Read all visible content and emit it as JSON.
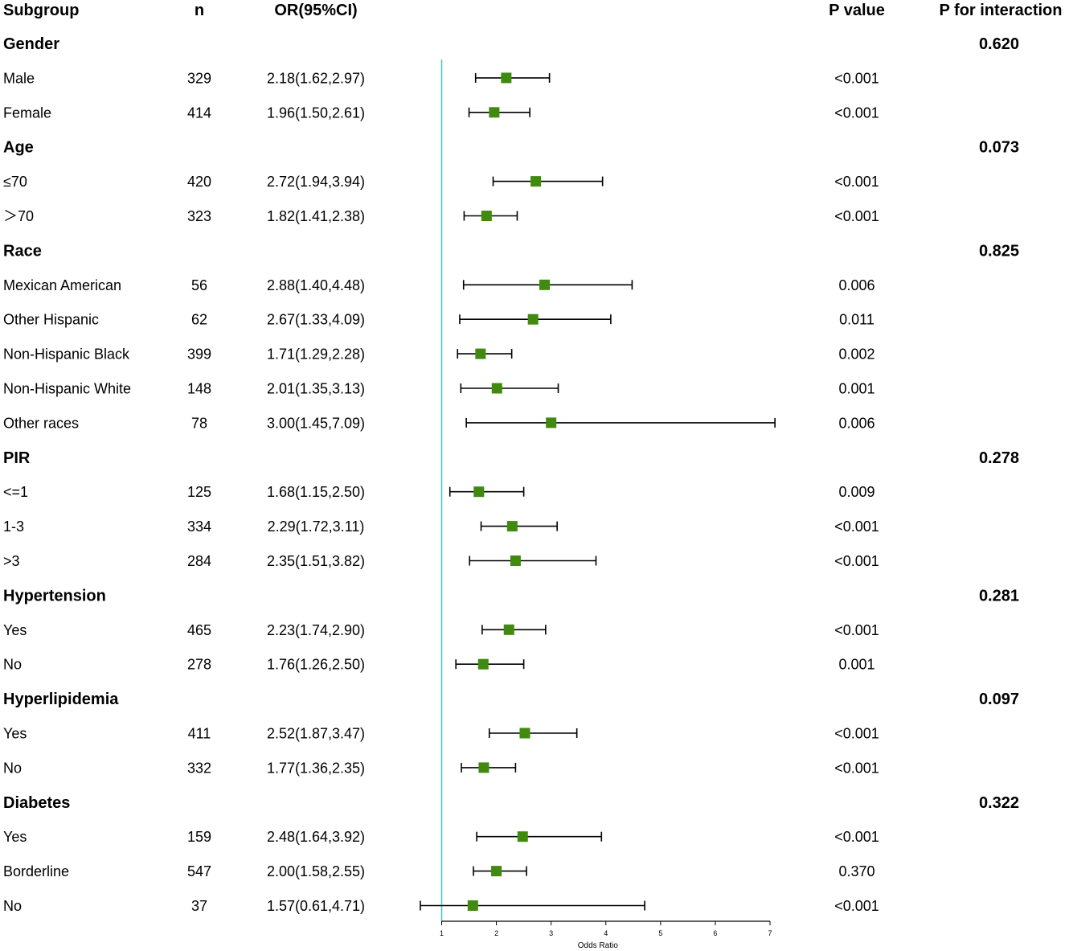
{
  "chart_data": {
    "type": "forest",
    "headers": {
      "subgroup": "Subgroup",
      "n": "n",
      "or_ci": "OR(95%CI)",
      "p_value": "P value",
      "p_interaction": "P for interaction"
    },
    "xlabel": "Odds Ratio",
    "xlim": [
      1,
      7
    ],
    "xticks": [
      1,
      2,
      3,
      4,
      5,
      6,
      7
    ],
    "reference_line": 1,
    "colors": {
      "marker": "#3f8a0f",
      "reference_line": "#4fc3c8",
      "ci": "#000000"
    },
    "rows": [
      {
        "kind": "group",
        "label": "Gender",
        "p_interaction": "0.620"
      },
      {
        "kind": "item",
        "label": "Male",
        "n": "329",
        "or_text": "2.18(1.62,2.97)",
        "or": 2.18,
        "lo": 1.62,
        "hi": 2.97,
        "p": "<0.001"
      },
      {
        "kind": "item",
        "label": "Female",
        "n": "414",
        "or_text": "1.96(1.50,2.61)",
        "or": 1.96,
        "lo": 1.5,
        "hi": 2.61,
        "p": "<0.001"
      },
      {
        "kind": "group",
        "label": "Age",
        "p_interaction": "0.073"
      },
      {
        "kind": "item",
        "label": "≤70",
        "n": "420",
        "or_text": "2.72(1.94,3.94)",
        "or": 2.72,
        "lo": 1.94,
        "hi": 3.94,
        "p": "<0.001"
      },
      {
        "kind": "item",
        "label": "＞70",
        "n": "323",
        "or_text": "1.82(1.41,2.38)",
        "or": 1.82,
        "lo": 1.41,
        "hi": 2.38,
        "p": "<0.001"
      },
      {
        "kind": "group",
        "label": "Race",
        "p_interaction": "0.825"
      },
      {
        "kind": "item",
        "label": "Mexican American",
        "n": "56",
        "or_text": "2.88(1.40,4.48)",
        "or": 2.88,
        "lo": 1.4,
        "hi": 4.48,
        "p": "0.006"
      },
      {
        "kind": "item",
        "label": "Other Hispanic",
        "n": "62",
        "or_text": "2.67(1.33,4.09)",
        "or": 2.67,
        "lo": 1.33,
        "hi": 4.09,
        "p": "0.011"
      },
      {
        "kind": "item",
        "label": "Non-Hispanic Black",
        "n": "399",
        "or_text": "1.71(1.29,2.28)",
        "or": 1.71,
        "lo": 1.29,
        "hi": 2.28,
        "p": "0.002"
      },
      {
        "kind": "item",
        "label": "Non-Hispanic White",
        "n": "148",
        "or_text": "2.01(1.35,3.13)",
        "or": 2.01,
        "lo": 1.35,
        "hi": 3.13,
        "p": "0.001"
      },
      {
        "kind": "item",
        "label": "Other races",
        "n": "78",
        "or_text": "3.00(1.45,7.09)",
        "or": 3.0,
        "lo": 1.45,
        "hi": 7.09,
        "p": "0.006"
      },
      {
        "kind": "group",
        "label": "PIR",
        "p_interaction": "0.278"
      },
      {
        "kind": "item",
        "label": "<=1",
        "n": "125",
        "or_text": "1.68(1.15,2.50)",
        "or": 1.68,
        "lo": 1.15,
        "hi": 2.5,
        "p": "0.009"
      },
      {
        "kind": "item",
        "label": " 1-3",
        "n": "334",
        "or_text": "2.29(1.72,3.11)",
        "or": 2.29,
        "lo": 1.72,
        "hi": 3.11,
        "p": "<0.001"
      },
      {
        "kind": "item",
        "label": ">3",
        "n": "284",
        "or_text": "2.35(1.51,3.82)",
        "or": 2.35,
        "lo": 1.51,
        "hi": 3.82,
        "p": "<0.001"
      },
      {
        "kind": "group",
        "label": "Hypertension",
        "p_interaction": "0.281"
      },
      {
        "kind": "item",
        "label": "Yes",
        "n": "465",
        "or_text": "2.23(1.74,2.90)",
        "or": 2.23,
        "lo": 1.74,
        "hi": 2.9,
        "p": "<0.001"
      },
      {
        "kind": "item",
        "label": "No",
        "n": "278",
        "or_text": "1.76(1.26,2.50)",
        "or": 1.76,
        "lo": 1.26,
        "hi": 2.5,
        "p": "0.001"
      },
      {
        "kind": "group",
        "label": "Hyperlipidemia",
        "p_interaction": "0.097"
      },
      {
        "kind": "item",
        "label": "Yes",
        "n": "411",
        "or_text": "2.52(1.87,3.47)",
        "or": 2.52,
        "lo": 1.87,
        "hi": 3.47,
        "p": "<0.001"
      },
      {
        "kind": "item",
        "label": "No",
        "n": "332",
        "or_text": "1.77(1.36,2.35)",
        "or": 1.77,
        "lo": 1.36,
        "hi": 2.35,
        "p": "<0.001"
      },
      {
        "kind": "group",
        "label": "Diabetes",
        "p_interaction": "0.322"
      },
      {
        "kind": "item",
        "label": "Yes",
        "n": "159",
        "or_text": "2.48(1.64,3.92)",
        "or": 2.48,
        "lo": 1.64,
        "hi": 3.92,
        "p": "<0.001"
      },
      {
        "kind": "item",
        "label": "Borderline",
        "n": "547",
        "or_text": "2.00(1.58,2.55)",
        "or": 2.0,
        "lo": 1.58,
        "hi": 2.55,
        "p": "0.370"
      },
      {
        "kind": "item",
        "label": "No",
        "n": "37",
        "or_text": "1.57(0.61,4.71)",
        "or": 1.57,
        "lo": 0.61,
        "hi": 4.71,
        "p": "<0.001"
      }
    ]
  }
}
